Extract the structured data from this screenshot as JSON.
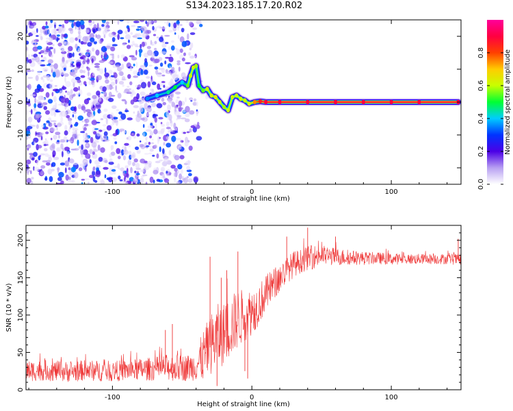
{
  "title": "S134.2023.185.17.20.R02",
  "chart_data": [
    {
      "type": "heatmap",
      "xlabel": "Height of straight line (km)",
      "ylabel": "Frequency (Hz)",
      "xlim": [
        -162,
        150
      ],
      "ylim": [
        -25,
        25
      ],
      "xticks": [
        -100,
        0,
        100
      ],
      "yticks": [
        -20,
        -10,
        0,
        10,
        20
      ],
      "colorbar": {
        "label": "Normalized spectral amplitude",
        "range": [
          0.0,
          1.0
        ],
        "ticks": [
          0.0,
          0.2,
          0.4,
          0.6,
          0.8
        ],
        "colors": [
          "#ffffff",
          "#b8a0f2",
          "#4b00e6",
          "#0033ff",
          "#00ccff",
          "#00ff33",
          "#c8ff00",
          "#ffcc00",
          "#ff4000",
          "#ff0040",
          "#ff0099"
        ]
      },
      "noise_region_x": [
        -162,
        -38
      ],
      "ridge": {
        "x": [
          -75,
          -68,
          -60,
          -55,
          -50,
          -46,
          -44,
          -42,
          -40,
          -38,
          -35,
          -32,
          -29,
          -26,
          -23,
          -20,
          -17,
          -14,
          -11,
          -8,
          -5,
          -2,
          2,
          6,
          10,
          20,
          40,
          60,
          80,
          100,
          120,
          148
        ],
        "frequency": [
          1,
          2,
          3,
          4.5,
          6,
          5,
          8,
          10.5,
          11,
          5,
          3.5,
          4,
          2,
          1.5,
          0,
          -1.5,
          -2.5,
          1.5,
          2,
          1,
          0.5,
          -0.5,
          0,
          0.2,
          0,
          0,
          0,
          0,
          0,
          0,
          0,
          0
        ],
        "amplitude": [
          0.35,
          0.4,
          0.45,
          0.5,
          0.4,
          0.55,
          0.6,
          0.62,
          0.58,
          0.5,
          0.55,
          0.6,
          0.62,
          0.65,
          0.6,
          0.58,
          0.6,
          0.62,
          0.6,
          0.6,
          0.6,
          0.62,
          0.75,
          0.85,
          0.9,
          0.9,
          0.9,
          0.9,
          0.9,
          0.9,
          0.9,
          0.9
        ]
      }
    },
    {
      "type": "line",
      "xlabel": "Height of straight line (km)",
      "ylabel": "SNR (10 * v/v)",
      "xlim": [
        -162,
        150
      ],
      "ylim": [
        0,
        220
      ],
      "xticks": [
        -100,
        0,
        100
      ],
      "yticks": [
        0,
        50,
        100,
        150,
        200
      ],
      "color": "#ee3333",
      "x": [
        -162,
        -150,
        -140,
        -130,
        -120,
        -110,
        -100,
        -90,
        -80,
        -70,
        -60,
        -50,
        -45,
        -40,
        -35,
        -30,
        -25,
        -20,
        -15,
        -10,
        -5,
        0,
        5,
        10,
        15,
        20,
        25,
        30,
        35,
        40,
        45,
        50,
        60,
        70,
        80,
        90,
        100,
        110,
        120,
        130,
        140,
        150
      ],
      "y": [
        25,
        26,
        25,
        24,
        26,
        25,
        25,
        26,
        27,
        28,
        30,
        29,
        30,
        32,
        45,
        60,
        70,
        75,
        85,
        95,
        100,
        105,
        115,
        128,
        140,
        150,
        160,
        168,
        172,
        176,
        178,
        180,
        178,
        177,
        176,
        176,
        175,
        175,
        175,
        175,
        175,
        174
      ],
      "noise_amplitude": [
        14,
        14,
        14,
        14,
        14,
        14,
        14,
        14,
        15,
        16,
        18,
        18,
        18,
        20,
        35,
        40,
        45,
        42,
        42,
        40,
        35,
        32,
        28,
        25,
        22,
        20,
        18,
        18,
        16,
        16,
        16,
        14,
        12,
        10,
        9,
        8,
        8,
        7,
        7,
        7,
        7,
        8
      ],
      "spikes": [
        {
          "x": -62,
          "y": 80
        },
        {
          "x": -57,
          "y": 88
        },
        {
          "x": -30,
          "y": 178
        },
        {
          "x": -25,
          "y": 5
        },
        {
          "x": -22,
          "y": 150
        },
        {
          "x": -18,
          "y": 160
        },
        {
          "x": -10,
          "y": 185
        },
        {
          "x": -5,
          "y": 25
        },
        {
          "x": -3,
          "y": 15
        },
        {
          "x": 2,
          "y": 80
        },
        {
          "x": 25,
          "y": 205
        },
        {
          "x": 40,
          "y": 217
        },
        {
          "x": 60,
          "y": 205
        },
        {
          "x": 148,
          "y": 202
        }
      ]
    }
  ]
}
